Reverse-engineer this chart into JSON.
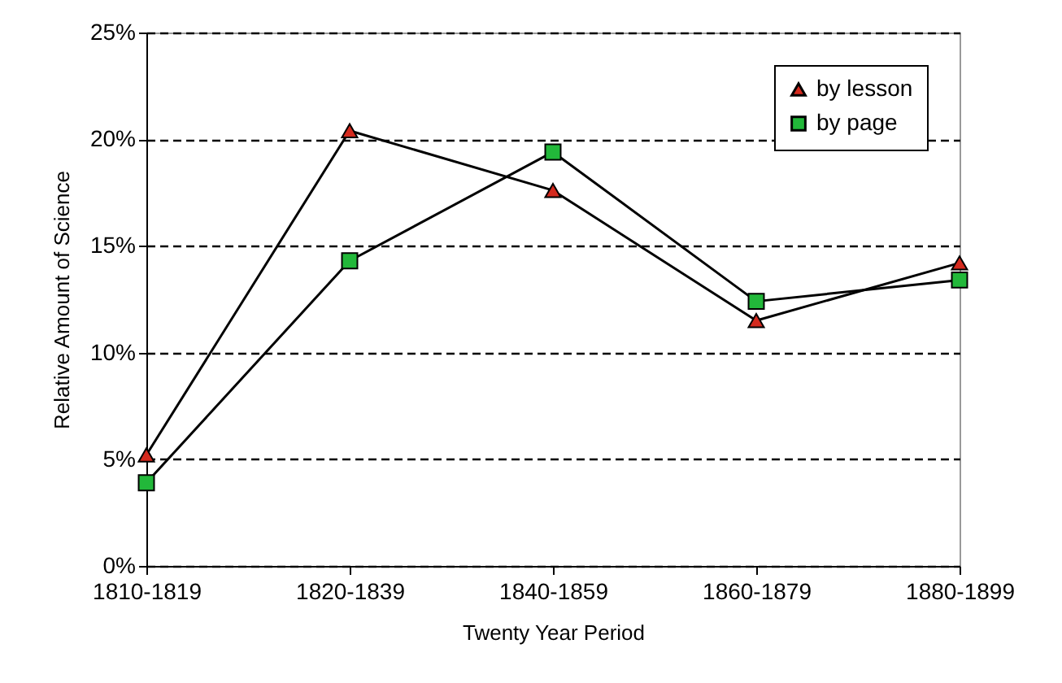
{
  "chart_data": {
    "type": "line",
    "xlabel": "Twenty Year Period",
    "ylabel": "Relative Amount of Science",
    "categories": [
      "1810-1819",
      "1820-1839",
      "1840-1859",
      "1860-1879",
      "1880-1899"
    ],
    "series": [
      {
        "name": "by lesson",
        "color": "#d42a1e",
        "marker": "triangle",
        "values": [
          5.2,
          20.4,
          17.6,
          11.5,
          14.2
        ]
      },
      {
        "name": "by page",
        "color": "#22b83a",
        "marker": "square",
        "values": [
          3.9,
          14.3,
          19.4,
          12.4,
          13.4
        ]
      }
    ],
    "ylim": [
      0,
      25
    ],
    "yticks": [
      {
        "value": 0,
        "label": "0%"
      },
      {
        "value": 5,
        "label": "5%"
      },
      {
        "value": 10,
        "label": "10%"
      },
      {
        "value": 15,
        "label": "15%"
      },
      {
        "value": 20,
        "label": "20%"
      },
      {
        "value": 25,
        "label": "25%"
      }
    ],
    "grid": "y",
    "legend": "top right",
    "line_style": "solid"
  }
}
